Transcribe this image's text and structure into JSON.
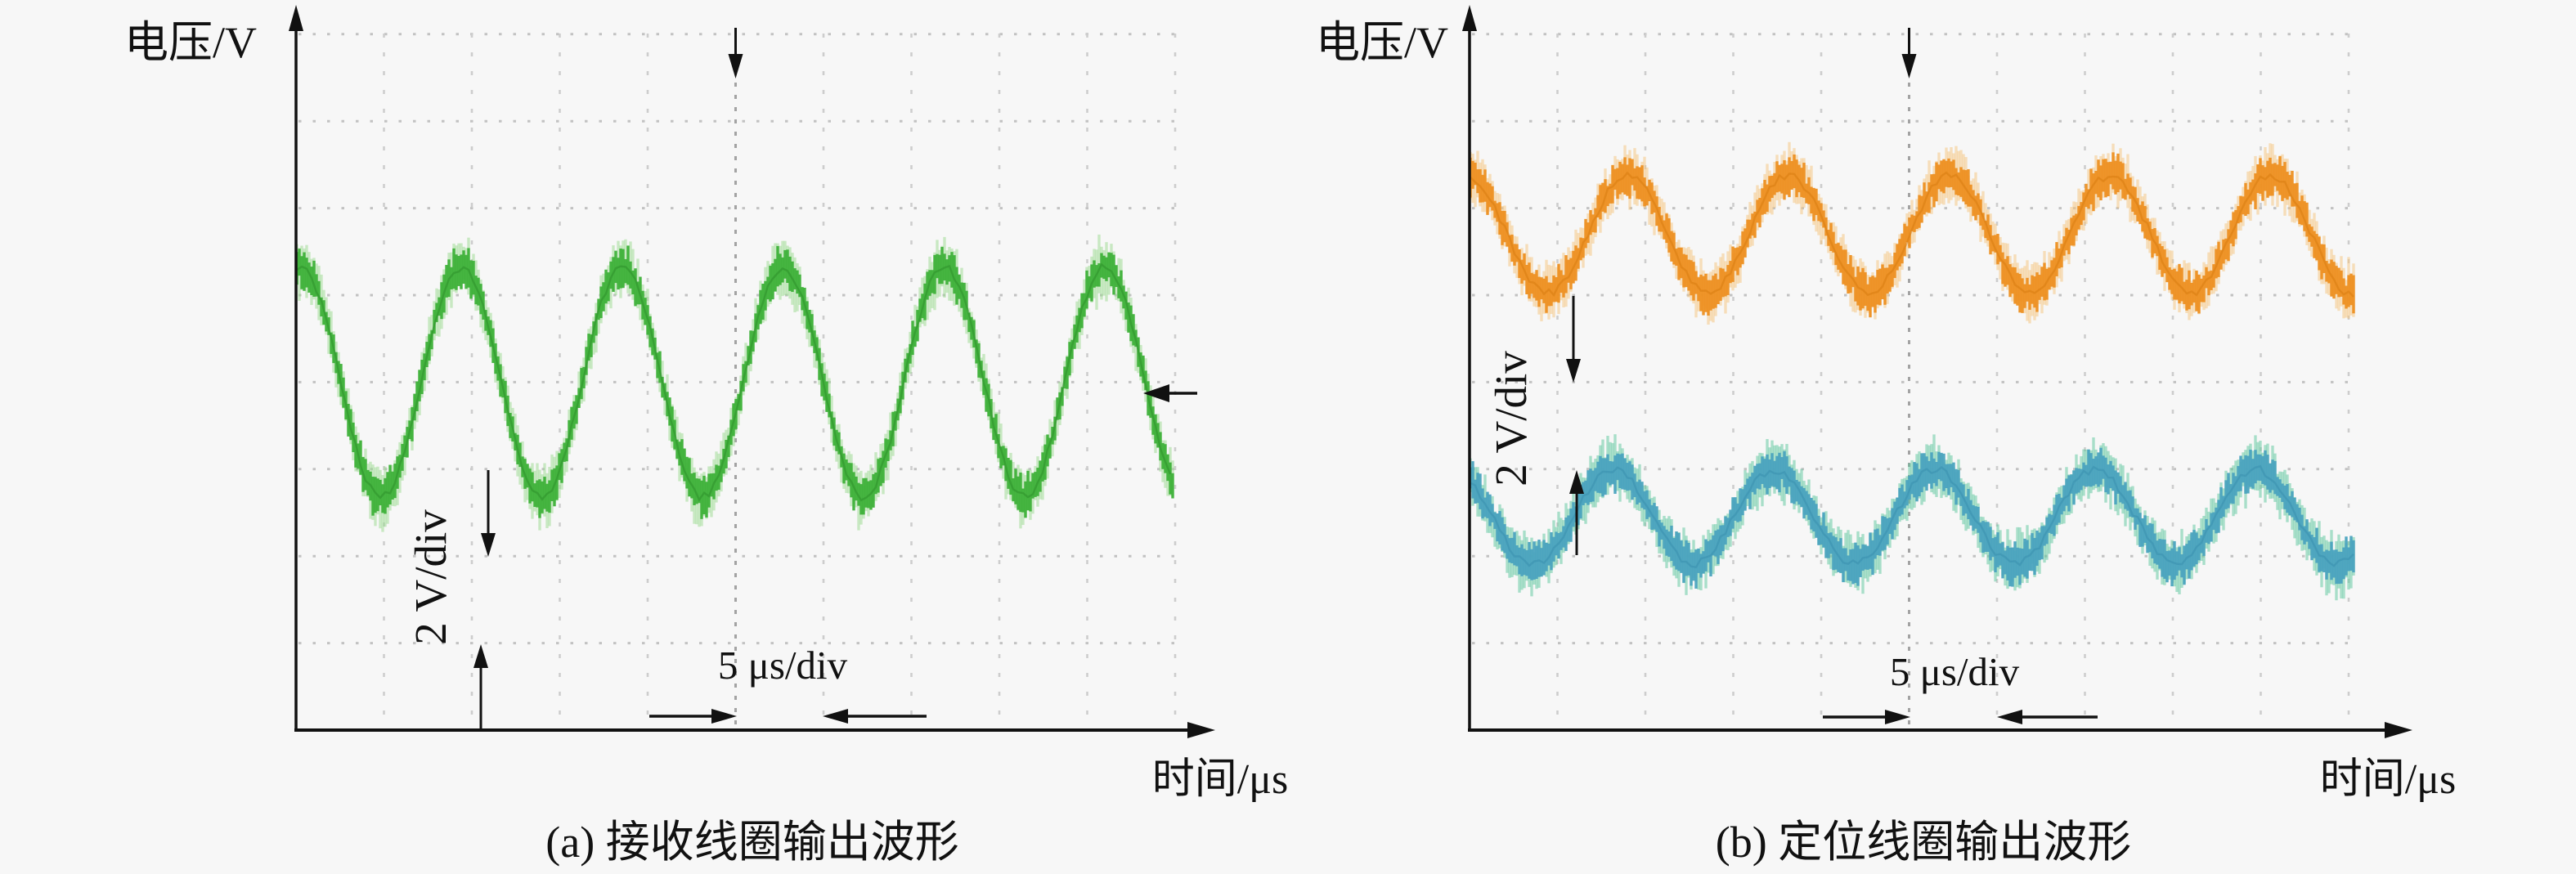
{
  "figure_background": "#f7f7f7",
  "panels": [
    {
      "id": "a",
      "caption": "(a) 接收线圈输出波形",
      "y_axis_label": "电压/V",
      "x_axis_label": "时间/μs",
      "v_scale_label": "2 V/div",
      "h_scale_label": "5 μs/div"
    },
    {
      "id": "b",
      "caption": "(b) 定位线圈输出波形",
      "y_axis_label": "电压/V",
      "x_axis_label": "时间/μs",
      "v_scale_label": "2 V/div",
      "h_scale_label": "5 μs/div"
    }
  ],
  "chart_data": [
    {
      "type": "line",
      "subtype": "oscilloscope-trace",
      "title": "(a) 接收线圈输出波形",
      "xlabel": "时间/μs",
      "ylabel": "电压/V",
      "x_scale_per_div": "5 μs/div",
      "y_scale_per_div": "2 V/div",
      "x_divisions": 10,
      "y_divisions": 8,
      "grid": "dotted",
      "legend": "none",
      "series": [
        {
          "name": "接收线圈输出 (green trace)",
          "color": "#3fb23a",
          "fringe_color": "#9adb8f",
          "core_color": "#2e8f2a",
          "waveform": "noisy sine",
          "amplitude_V": 2.6,
          "peak_to_peak_V": 5.2,
          "period_us": 9.2,
          "frequency_kHz": 109,
          "amplitude_div": 1.32,
          "period_div": 1.83,
          "center_above_xaxis_div": 4.0,
          "first_peak_x_div": 0.05,
          "visible_cycles": 5.4,
          "noise_band_div": 0.25,
          "seed": 7
        }
      ]
    },
    {
      "type": "line",
      "subtype": "oscilloscope-trace",
      "title": "(b) 定位线圈输出波形",
      "xlabel": "时间/μs",
      "ylabel": "电压/V",
      "x_scale_per_div": "5 μs/div",
      "y_scale_per_div": "2 V/div",
      "x_divisions": 10,
      "y_divisions": 8,
      "grid": "dotted",
      "legend": "none",
      "series": [
        {
          "name": "upper trace (orange)",
          "color": "#ee9122",
          "fringe_color": "#f6c57d",
          "core_color": "#d97b10",
          "waveform": "noisy sine",
          "amplitude_V": 1.36,
          "peak_to_peak_V": 2.7,
          "period_us": 9.2,
          "frequency_kHz": 109,
          "amplitude_div": 0.68,
          "period_div": 1.83,
          "center_above_xaxis_div": 5.7,
          "first_peak_x_div": 1.8,
          "visible_cycles": 5.5,
          "noise_band_div": 0.25,
          "seed": 11
        },
        {
          "name": "lower trace (teal)",
          "color": "#4ba4bf",
          "fringe_color": "#5cc69c",
          "core_color": "#3b8fae",
          "waveform": "noisy sine",
          "amplitude_V": 1.1,
          "peak_to_peak_V": 2.2,
          "period_us": 9.2,
          "frequency_kHz": 109,
          "amplitude_div": 0.545,
          "period_div": 1.83,
          "center_above_xaxis_div": 2.45,
          "first_peak_x_div": 1.63,
          "visible_cycles": 5.5,
          "noise_band_div": 0.25,
          "seed": 23
        }
      ]
    }
  ]
}
